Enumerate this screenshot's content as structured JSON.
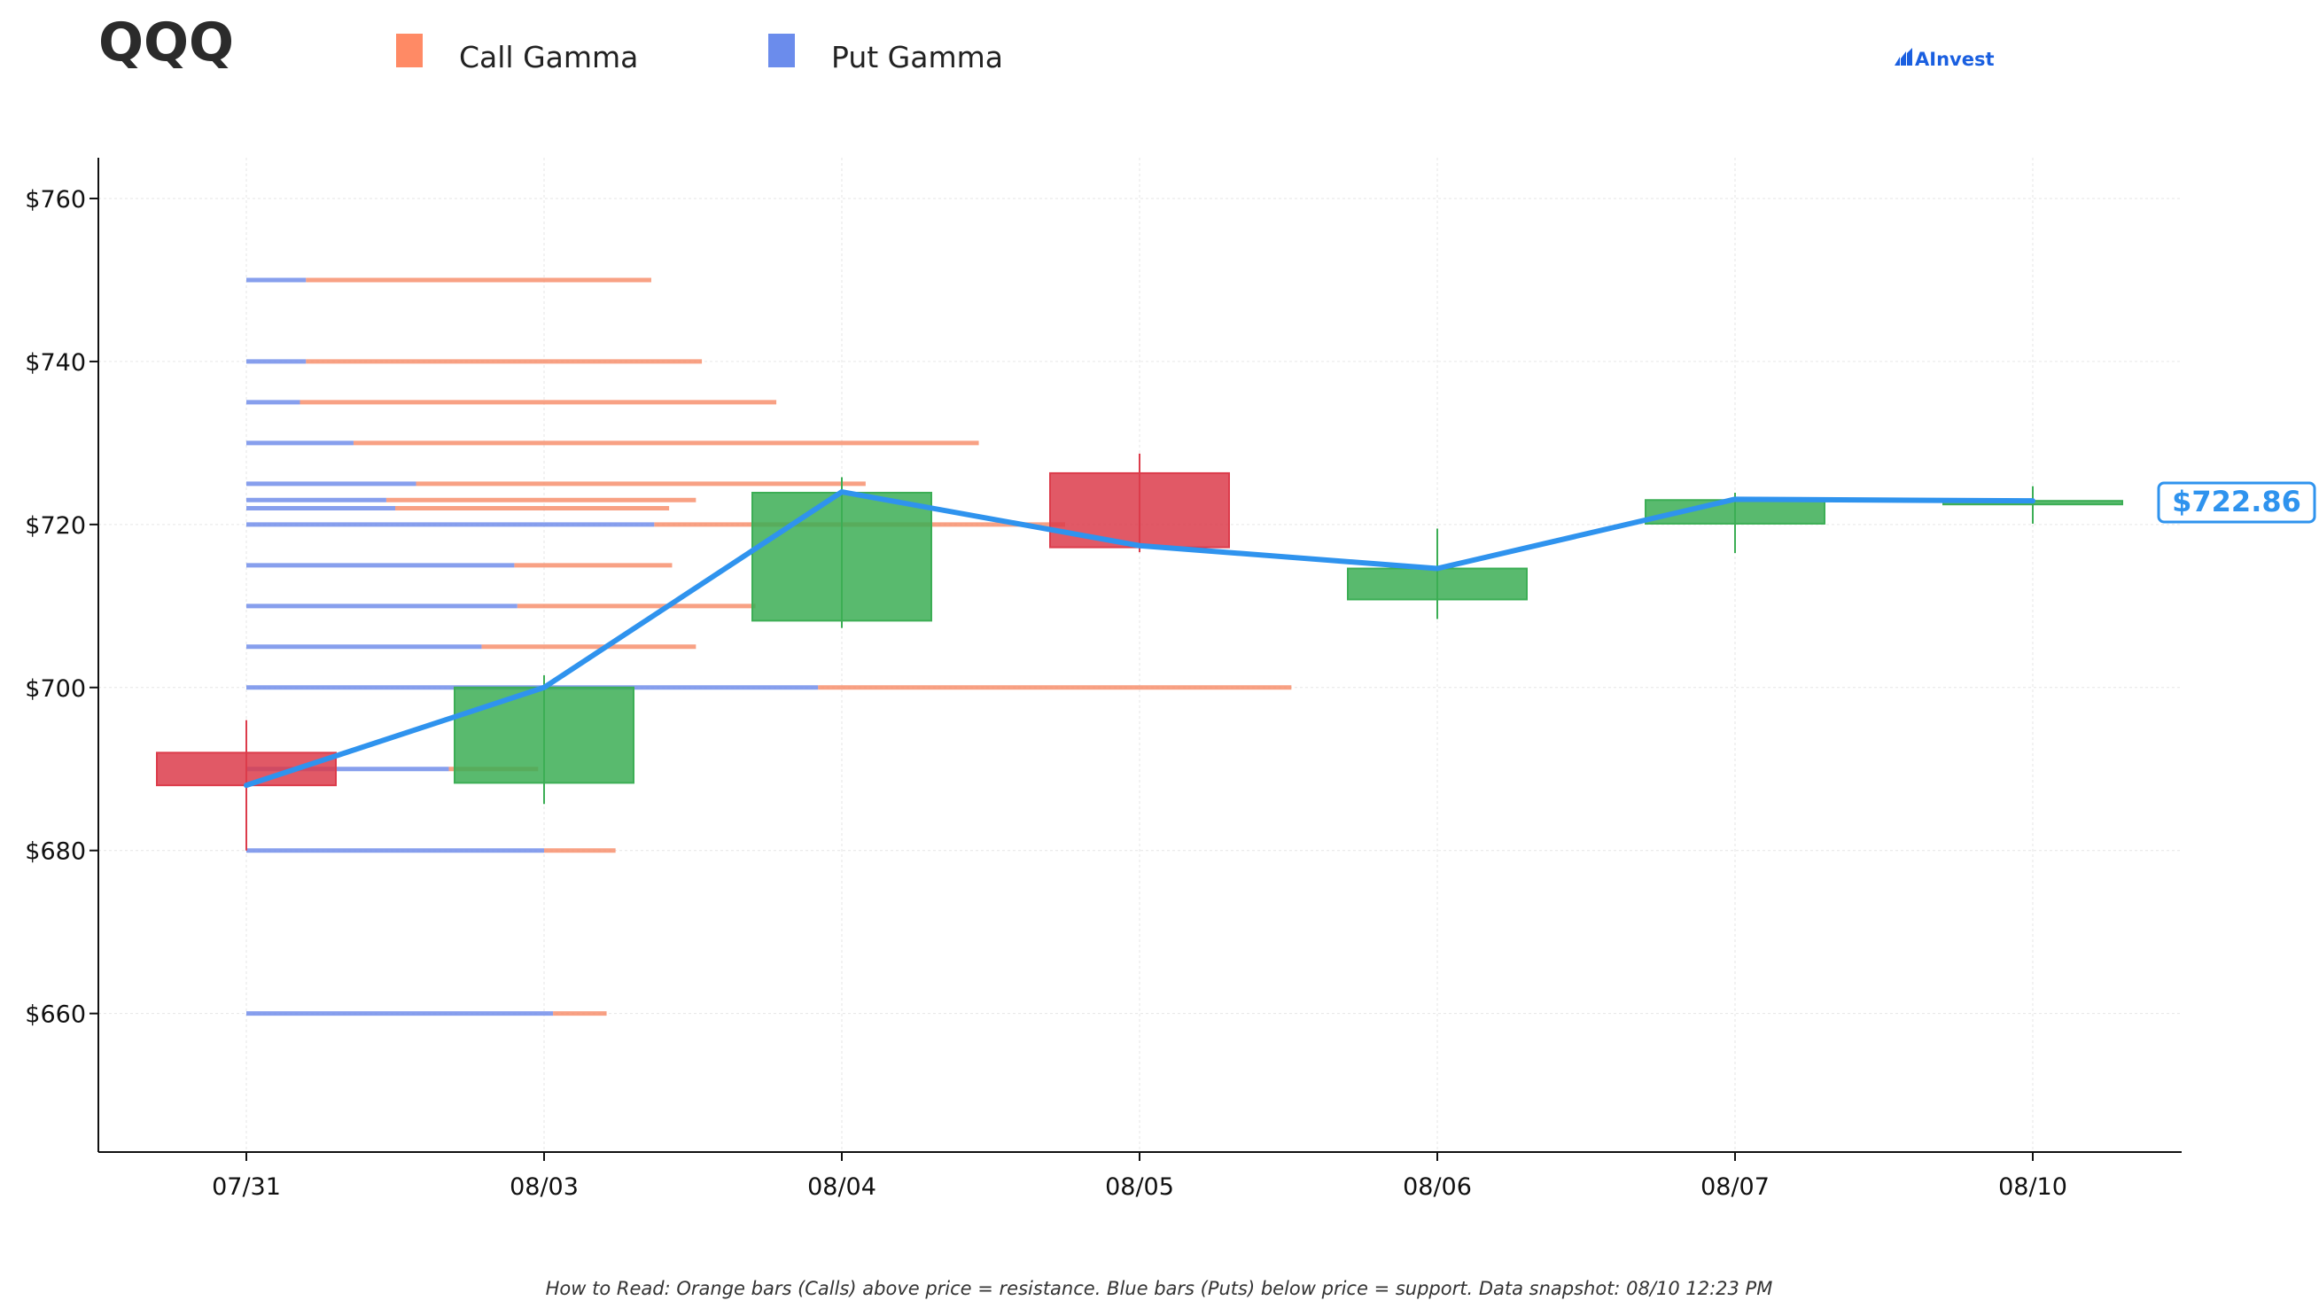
{
  "header": {
    "ticker": "QQQ",
    "brand": "AInvest"
  },
  "legend": [
    {
      "label": "Call Gamma",
      "color": "#ff8a65"
    },
    {
      "label": "Put Gamma",
      "color": "#6b8cec"
    }
  ],
  "footer_note": "How to Read: Orange bars (Calls) above price = resistance. Blue bars (Puts) below price = support. Data snapshot: 08/10 12:23 PM",
  "current_price_label": "$722.86",
  "colors": {
    "up": "#3cae55",
    "down": "#dc3c4b",
    "line": "#2f93ee",
    "call": "#f7916f",
    "put": "#7b95ec",
    "axis": "#111111",
    "grid": "#e6e6e6"
  },
  "chart_data": {
    "type": "candlestick",
    "categories": [
      "07/31",
      "08/03",
      "08/04",
      "08/05",
      "08/06",
      "08/07",
      "08/10"
    ],
    "ylim": [
      643,
      765
    ],
    "yticks": [
      660,
      680,
      700,
      720,
      740,
      760
    ],
    "ytick_labels": [
      "$660",
      "$680",
      "$700",
      "$720",
      "$740",
      "$760"
    ],
    "grid": true,
    "legend_position": "top-left",
    "candles": [
      {
        "date": "07/31",
        "open": 692,
        "close": 688,
        "high": 696,
        "low": 680
      },
      {
        "date": "08/03",
        "open": 688.3,
        "close": 700,
        "high": 701.5,
        "low": 685.7
      },
      {
        "date": "08/04",
        "open": 708.2,
        "close": 723.9,
        "high": 725.8,
        "low": 707.3
      },
      {
        "date": "08/05",
        "open": 726.3,
        "close": 717.2,
        "high": 728.7,
        "low": 716.6
      },
      {
        "date": "08/06",
        "open": 710.8,
        "close": 714.6,
        "high": 719.5,
        "low": 708.4
      },
      {
        "date": "08/07",
        "open": 720.1,
        "close": 723.0,
        "high": 723.9,
        "low": 716.5
      },
      {
        "date": "08/10",
        "open": 722.5,
        "close": 722.9,
        "high": 724.7,
        "low": 720.1
      }
    ],
    "price_line": [
      688,
      700,
      724,
      717.4,
      714.6,
      723.1,
      722.9
    ],
    "current_price": 722.86,
    "gamma_levels": [
      {
        "strike": 750,
        "put": 0.2,
        "total": 1.36
      },
      {
        "strike": 740,
        "put": 0.2,
        "total": 1.53
      },
      {
        "strike": 735,
        "put": 0.18,
        "total": 1.78
      },
      {
        "strike": 730,
        "put": 0.36,
        "total": 2.46
      },
      {
        "strike": 725,
        "put": 0.57,
        "total": 2.08
      },
      {
        "strike": 723,
        "put": 0.47,
        "total": 1.51
      },
      {
        "strike": 722,
        "put": 0.5,
        "total": 1.42
      },
      {
        "strike": 720,
        "put": 1.37,
        "total": 2.75
      },
      {
        "strike": 715,
        "put": 0.9,
        "total": 1.43
      },
      {
        "strike": 710,
        "put": 0.91,
        "total": 1.71
      },
      {
        "strike": 705,
        "put": 0.79,
        "total": 1.51
      },
      {
        "strike": 700,
        "put": 1.92,
        "total": 3.51
      },
      {
        "strike": 690,
        "put": 0.68,
        "total": 0.98
      },
      {
        "strike": 680,
        "put": 1.0,
        "total": 1.24
      },
      {
        "strike": 660,
        "put": 1.03,
        "total": 1.21
      }
    ]
  }
}
